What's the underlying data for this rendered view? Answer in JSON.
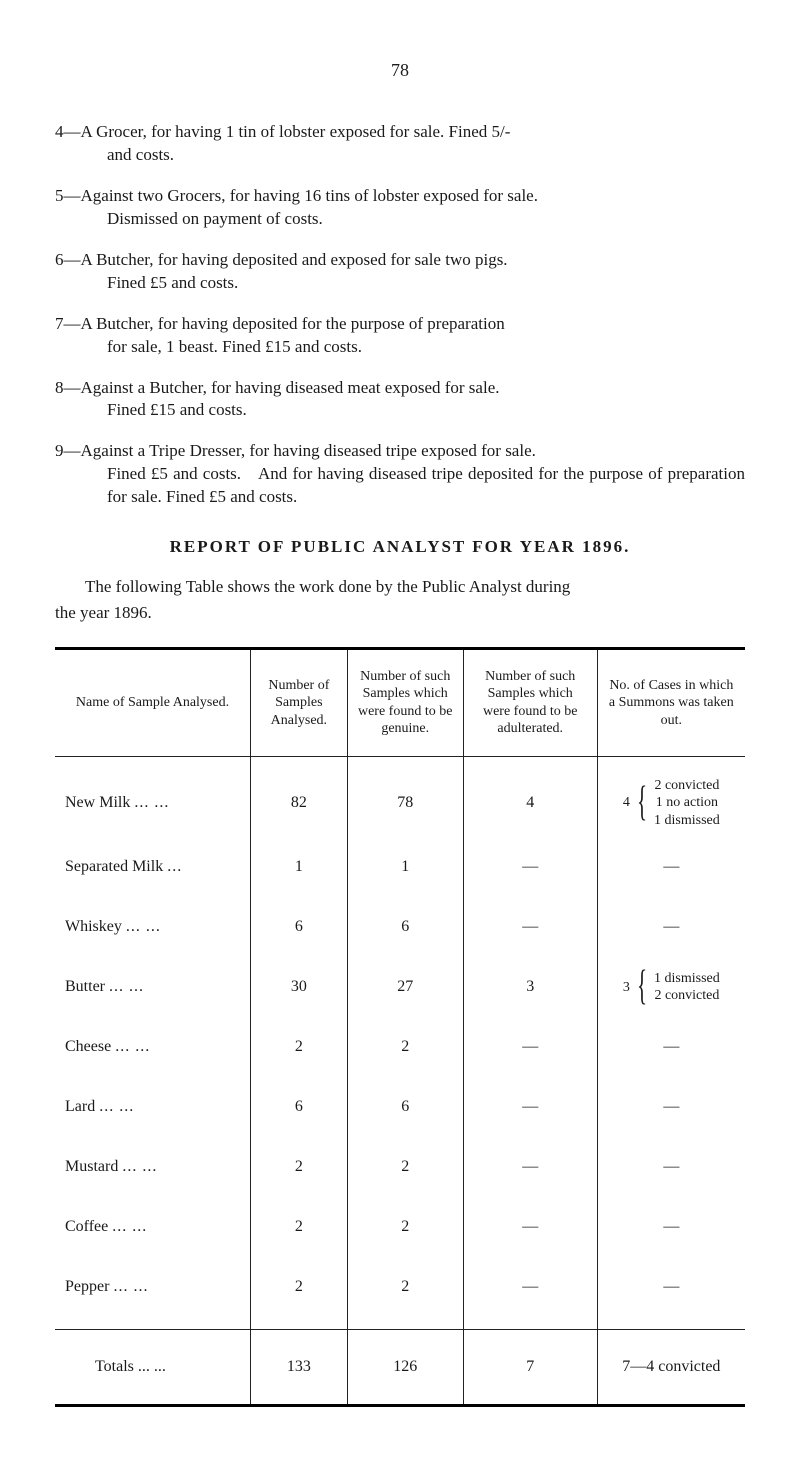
{
  "page_number": "78",
  "items": [
    {
      "lead": "4—A Grocer, for having 1 tin of lobster exposed for sale.  Fined 5/-",
      "cont": "and costs."
    },
    {
      "lead": "5—Against two Grocers, for having 16 tins of lobster exposed for sale.",
      "cont": "Dismissed on payment of costs."
    },
    {
      "lead": "6—A Butcher, for having deposited and exposed for sale two pigs.",
      "cont": "Fined £5 and costs."
    },
    {
      "lead": "7—A Butcher, for having deposited for the purpose of preparation",
      "cont": "for sale, 1 beast.  Fined £15 and costs."
    },
    {
      "lead": "8—Against a Butcher, for having diseased meat exposed for sale.",
      "cont": "Fined £15 and costs."
    },
    {
      "lead": "9—Against a Tripe Dresser, for having diseased tripe exposed for sale.",
      "cont": "Fined £5 and costs. And for having diseased tripe deposited for the purpose of preparation for sale.  Fined £5 and costs."
    }
  ],
  "report_heading": "REPORT OF PUBLIC ANALYST FOR YEAR 1896.",
  "intro_line1": "The following Table shows the work done by the Public Analyst during",
  "intro_line2": "the year 1896.",
  "table": {
    "headers": [
      "Name of Sample Analysed.",
      "Number of Samples Analysed.",
      "Number of such Samples which were found to be genuine.",
      "Number of such Samples which were found to be adulterated.",
      "No. of Cases in which a Summons was taken out."
    ],
    "rows": [
      {
        "name": "New Milk",
        "dots": "...   ...",
        "analysed": "82",
        "genuine": "78",
        "adulterated": "4",
        "cases": {
          "num": "4",
          "lines": [
            "2 convicted",
            "1 no action",
            "1 dismissed"
          ]
        }
      },
      {
        "name": "Separated Milk",
        "dots": "...",
        "analysed": "1",
        "genuine": "1",
        "adulterated": "—",
        "cases": "—"
      },
      {
        "name": "Whiskey",
        "dots": "...   ...",
        "analysed": "6",
        "genuine": "6",
        "adulterated": "—",
        "cases": "—"
      },
      {
        "name": "Butter",
        "dots": "...   ...",
        "analysed": "30",
        "genuine": "27",
        "adulterated": "3",
        "cases": {
          "num": "3",
          "lines": [
            "1 dismissed",
            "2 convicted"
          ]
        }
      },
      {
        "name": "Cheese",
        "dots": "...   ...",
        "analysed": "2",
        "genuine": "2",
        "adulterated": "—",
        "cases": "—"
      },
      {
        "name": "Lard",
        "dots": "...   ...",
        "analysed": "6",
        "genuine": "6",
        "adulterated": "—",
        "cases": "—"
      },
      {
        "name": "Mustard",
        "dots": "...   ...",
        "analysed": "2",
        "genuine": "2",
        "adulterated": "—",
        "cases": "—"
      },
      {
        "name": "Coffee",
        "dots": "...   ...",
        "analysed": "2",
        "genuine": "2",
        "adulterated": "—",
        "cases": "—"
      },
      {
        "name": "Pepper",
        "dots": "...   ...",
        "analysed": "2",
        "genuine": "2",
        "adulterated": "—",
        "cases": "—"
      }
    ],
    "totals": {
      "label": "Totals ...   ...",
      "analysed": "133",
      "genuine": "126",
      "adulterated": "7",
      "cases": "7—4 convicted"
    }
  }
}
